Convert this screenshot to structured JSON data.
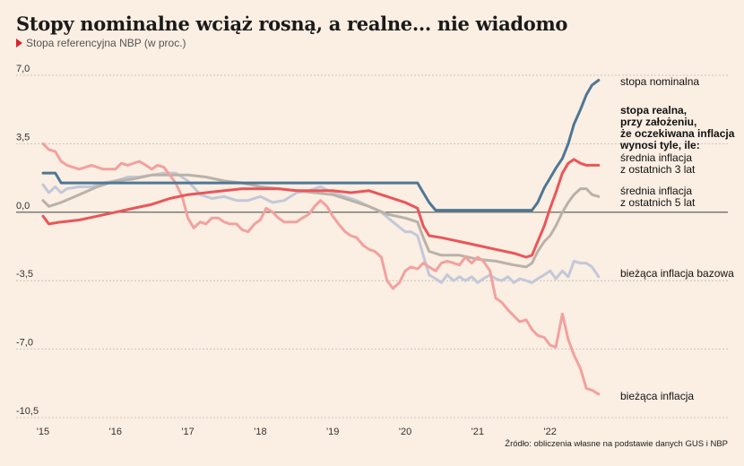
{
  "title": "Stopy nominalne wciąż rosną, a realne... nie wiadomo",
  "subtitle": "Stopa referencyjna NBP (w proc.)",
  "source": "Źródło: obliczenia własne na podstawie danych GUS i NBP",
  "colors": {
    "nominal": "#4d7796",
    "real5": "#b9b2a8",
    "real3": "#e9565a",
    "core": "#c2c8d9",
    "cpi": "#f2a19f",
    "zero_line": "#555555",
    "grid": "#bbbbbb"
  },
  "chart_data": {
    "type": "line",
    "title": "Stopy nominalne wciąż rosną, a realne... nie wiadomo",
    "subtitle": "Stopa referencyjna NBP (w proc.)",
    "ylim": [
      -10.5,
      7.0
    ],
    "yticks": [
      "7,0",
      "3,5",
      "0,0",
      "-3,5",
      "-7,0",
      "-10,5"
    ],
    "ytick_values": [
      7.0,
      3.5,
      0.0,
      -3.5,
      -7.0,
      -10.5
    ],
    "xlim": [
      2015.0,
      2022.92
    ],
    "xticks": [
      "'15",
      "'16",
      "'17",
      "'18",
      "'19",
      "'20",
      "'21",
      "'22"
    ],
    "xtick_values": [
      2015,
      2016,
      2017,
      2018,
      2019,
      2020,
      2021,
      2022
    ],
    "legend_heading": [
      "stopa realna,",
      "przy założeniu,",
      "że oczekiwana inflacja",
      "wynosi tyle, ile:"
    ],
    "series": [
      {
        "name": "stopa nominalna",
        "key": "nominal",
        "label_lines": [
          "stopa nominalna"
        ],
        "x": [
          2015.0,
          2015.08,
          2015.17,
          2015.25,
          2017.0,
          2019.0,
          2020.17,
          2020.25,
          2020.33,
          2020.42,
          2021.75,
          2021.83,
          2021.92,
          2022.0,
          2022.08,
          2022.17,
          2022.25,
          2022.33,
          2022.42,
          2022.5,
          2022.58,
          2022.67
        ],
        "values": [
          2.0,
          2.0,
          2.0,
          1.5,
          1.5,
          1.5,
          1.5,
          1.0,
          0.5,
          0.1,
          0.1,
          0.5,
          1.25,
          1.75,
          2.25,
          2.75,
          3.5,
          4.5,
          5.25,
          6.0,
          6.5,
          6.75
        ]
      },
      {
        "name": "średnia inflacja z ostatnich 5 lat",
        "key": "real5",
        "label_lines": [
          "średnia inflacja",
          "z ostatnich 5 lat"
        ],
        "x": [
          2015.0,
          2015.08,
          2015.25,
          2015.5,
          2015.75,
          2016.0,
          2016.25,
          2016.5,
          2016.75,
          2017.0,
          2017.25,
          2017.5,
          2017.75,
          2018.0,
          2018.25,
          2018.5,
          2018.75,
          2019.0,
          2019.25,
          2019.5,
          2019.75,
          2020.0,
          2020.17,
          2020.25,
          2020.33,
          2020.5,
          2020.75,
          2021.0,
          2021.25,
          2021.5,
          2021.67,
          2021.75,
          2021.83,
          2021.92,
          2022.0,
          2022.08,
          2022.17,
          2022.25,
          2022.33,
          2022.42,
          2022.5,
          2022.58,
          2022.67
        ],
        "values": [
          0.6,
          0.3,
          0.5,
          0.9,
          1.3,
          1.6,
          1.7,
          1.9,
          1.9,
          1.9,
          1.8,
          1.6,
          1.5,
          1.3,
          1.2,
          1.1,
          1.0,
          0.9,
          0.6,
          0.3,
          -0.1,
          -0.3,
          -0.5,
          -1.3,
          -2.0,
          -2.2,
          -2.2,
          -2.4,
          -2.5,
          -2.7,
          -2.8,
          -2.6,
          -2.0,
          -1.5,
          -1.2,
          -0.7,
          0.0,
          0.5,
          0.9,
          1.2,
          1.2,
          0.9,
          0.8
        ]
      },
      {
        "name": "średnia inflacja z ostatnich 3 lat",
        "key": "real3",
        "label_lines": [
          "średnia inflacja",
          "z ostatnich 3 lat"
        ],
        "x": [
          2015.0,
          2015.08,
          2015.25,
          2015.5,
          2015.75,
          2016.0,
          2016.25,
          2016.5,
          2016.75,
          2017.0,
          2017.25,
          2017.5,
          2017.75,
          2018.0,
          2018.25,
          2018.5,
          2018.75,
          2019.0,
          2019.25,
          2019.5,
          2019.75,
          2020.0,
          2020.17,
          2020.25,
          2020.33,
          2020.5,
          2020.75,
          2021.0,
          2021.25,
          2021.5,
          2021.67,
          2021.75,
          2021.83,
          2021.92,
          2022.0,
          2022.08,
          2022.17,
          2022.25,
          2022.33,
          2022.42,
          2022.5,
          2022.58,
          2022.67
        ],
        "values": [
          -0.2,
          -0.6,
          -0.5,
          -0.4,
          -0.2,
          0.0,
          0.2,
          0.4,
          0.7,
          0.9,
          1.0,
          1.1,
          1.2,
          1.2,
          1.2,
          1.1,
          1.1,
          1.1,
          1.0,
          1.1,
          0.8,
          0.5,
          0.2,
          -0.7,
          -1.2,
          -1.3,
          -1.5,
          -1.7,
          -1.9,
          -2.1,
          -2.3,
          -2.2,
          -1.5,
          -0.7,
          0.2,
          1.0,
          2.0,
          2.5,
          2.7,
          2.5,
          2.4,
          2.4,
          2.4
        ]
      },
      {
        "name": "bieżąca inflacja bazowa",
        "key": "core",
        "label_lines": [
          "bieżąca inflacja bazowa"
        ],
        "x": [
          2015.0,
          2015.08,
          2015.17,
          2015.25,
          2015.33,
          2015.5,
          2015.67,
          2015.83,
          2016.0,
          2016.17,
          2016.33,
          2016.5,
          2016.67,
          2016.83,
          2017.0,
          2017.17,
          2017.33,
          2017.5,
          2017.67,
          2017.83,
          2018.0,
          2018.17,
          2018.33,
          2018.5,
          2018.67,
          2018.83,
          2019.0,
          2019.17,
          2019.33,
          2019.5,
          2019.67,
          2019.83,
          2020.0,
          2020.08,
          2020.17,
          2020.25,
          2020.33,
          2020.42,
          2020.5,
          2020.58,
          2020.67,
          2020.75,
          2020.83,
          2020.92,
          2021.0,
          2021.08,
          2021.17,
          2021.25,
          2021.33,
          2021.42,
          2021.5,
          2021.58,
          2021.67,
          2021.75,
          2021.83,
          2021.92,
          2022.0,
          2022.08,
          2022.17,
          2022.25,
          2022.33,
          2022.42,
          2022.5,
          2022.58,
          2022.67
        ],
        "values": [
          1.4,
          1.0,
          1.3,
          1.0,
          1.2,
          1.3,
          1.3,
          1.5,
          1.6,
          1.8,
          1.8,
          1.9,
          2.0,
          2.0,
          1.6,
          0.9,
          0.7,
          0.8,
          0.6,
          0.6,
          0.8,
          0.5,
          0.6,
          1.0,
          1.1,
          1.3,
          1.0,
          0.8,
          0.6,
          0.3,
          0.0,
          -0.5,
          -1.0,
          -1.0,
          -1.2,
          -2.2,
          -3.2,
          -3.4,
          -3.6,
          -3.2,
          -3.5,
          -3.3,
          -3.5,
          -3.3,
          -3.6,
          -3.4,
          -3.2,
          -3.4,
          -3.5,
          -3.3,
          -3.6,
          -3.4,
          -3.5,
          -3.6,
          -3.4,
          -3.2,
          -3.0,
          -3.4,
          -3.0,
          -3.3,
          -2.5,
          -2.6,
          -2.6,
          -2.8,
          -3.3
        ]
      },
      {
        "name": "bieżąca inflacja",
        "key": "cpi",
        "label_lines": [
          "bieżąca inflacja"
        ],
        "x": [
          2015.0,
          2015.08,
          2015.17,
          2015.25,
          2015.33,
          2015.5,
          2015.67,
          2015.83,
          2016.0,
          2016.08,
          2016.17,
          2016.33,
          2016.42,
          2016.5,
          2016.58,
          2016.67,
          2016.75,
          2016.83,
          2016.92,
          2017.0,
          2017.08,
          2017.17,
          2017.25,
          2017.33,
          2017.42,
          2017.5,
          2017.58,
          2017.67,
          2017.75,
          2017.83,
          2017.92,
          2018.0,
          2018.08,
          2018.17,
          2018.25,
          2018.33,
          2018.42,
          2018.5,
          2018.58,
          2018.67,
          2018.75,
          2018.83,
          2018.92,
          2019.0,
          2019.08,
          2019.17,
          2019.25,
          2019.33,
          2019.42,
          2019.5,
          2019.58,
          2019.67,
          2019.75,
          2019.83,
          2019.92,
          2020.0,
          2020.08,
          2020.17,
          2020.25,
          2020.33,
          2020.42,
          2020.5,
          2020.58,
          2020.67,
          2020.75,
          2020.83,
          2020.92,
          2021.0,
          2021.08,
          2021.17,
          2021.25,
          2021.33,
          2021.42,
          2021.5,
          2021.58,
          2021.67,
          2021.75,
          2021.83,
          2021.92,
          2022.0,
          2022.08,
          2022.17,
          2022.25,
          2022.33,
          2022.42,
          2022.5,
          2022.58,
          2022.67
        ],
        "values": [
          3.5,
          3.2,
          3.1,
          2.6,
          2.4,
          2.2,
          2.4,
          2.2,
          2.2,
          2.5,
          2.4,
          2.6,
          2.4,
          2.2,
          2.4,
          2.3,
          1.9,
          1.5,
          0.8,
          -0.3,
          -0.8,
          -0.5,
          -0.6,
          -0.3,
          -0.3,
          -0.5,
          -0.6,
          -0.6,
          -0.9,
          -1.0,
          -0.6,
          -0.4,
          0.2,
          0.0,
          -0.3,
          -0.5,
          -0.5,
          -0.5,
          -0.3,
          -0.1,
          0.3,
          0.6,
          0.3,
          -0.2,
          -0.6,
          -1.0,
          -1.2,
          -1.3,
          -1.7,
          -1.9,
          -2.0,
          -2.3,
          -3.5,
          -3.9,
          -3.6,
          -3.0,
          -2.8,
          -2.9,
          -2.6,
          -2.8,
          -3.0,
          -2.6,
          -2.5,
          -2.6,
          -2.7,
          -2.3,
          -2.6,
          -2.3,
          -2.5,
          -3.0,
          -4.4,
          -4.6,
          -5.0,
          -5.3,
          -5.6,
          -5.5,
          -6.0,
          -6.3,
          -6.4,
          -6.8,
          -6.9,
          -5.2,
          -6.5,
          -7.3,
          -8.0,
          -9.0,
          -9.1,
          -9.3
        ]
      }
    ]
  }
}
